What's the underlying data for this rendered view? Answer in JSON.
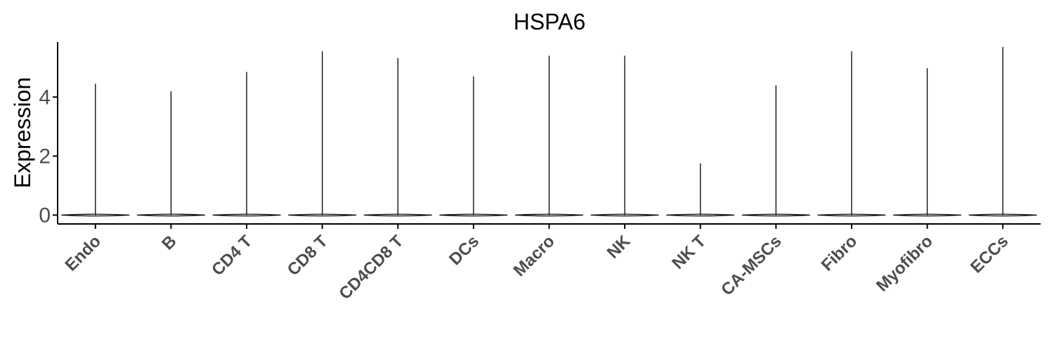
{
  "chart_data": {
    "type": "violin",
    "title": "HSPA6",
    "xlabel": "",
    "ylabel": "Expression",
    "ylim": [
      -0.3,
      6.1
    ],
    "yticks": [
      0,
      2,
      4
    ],
    "grid": false,
    "legend": "none",
    "categories": [
      "Endo",
      "B",
      "CD4 T",
      "CD8 T",
      "CD4CD8 T",
      "DCs",
      "Macro",
      "NK",
      "NK T",
      "CA-MSCs",
      "Fibro",
      "Myofibro",
      "ECCs"
    ],
    "max_values": [
      4.45,
      4.2,
      4.85,
      5.55,
      5.32,
      4.7,
      5.4,
      5.4,
      1.75,
      4.4,
      5.55,
      4.98,
      5.7
    ],
    "median_values": [
      0,
      0,
      0,
      0,
      0,
      0,
      0,
      0,
      0,
      0,
      0,
      0,
      0
    ],
    "colors": {
      "violin": "#000000",
      "axis": "#000000",
      "tick_text": "#4d4d4d"
    }
  }
}
